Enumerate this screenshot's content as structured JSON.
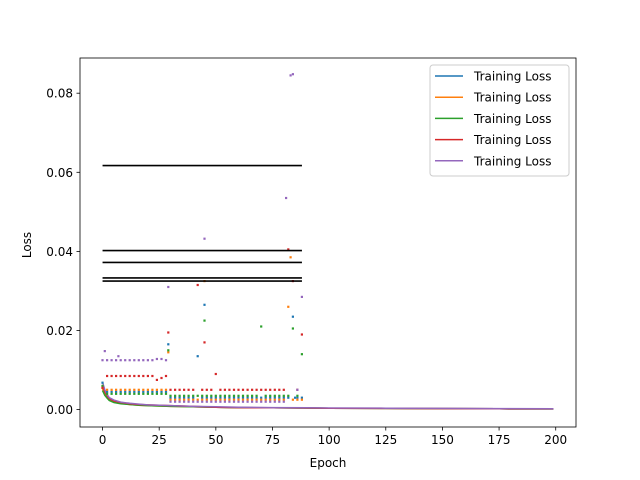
{
  "chart_data": {
    "type": "line",
    "title": "",
    "xlabel": "Epoch",
    "ylabel": "Loss",
    "xlim": [
      -9.95,
      208.95
    ],
    "ylim": [
      -0.0044,
      0.0889
    ],
    "xticks": [
      0,
      25,
      50,
      75,
      100,
      125,
      150,
      175,
      200
    ],
    "yticks": [
      0.0,
      0.02,
      0.04,
      0.06,
      0.08
    ],
    "ytick_labels": [
      "0.00",
      "0.02",
      "0.04",
      "0.06",
      "0.08"
    ],
    "grid": false,
    "legend_position": "top-right",
    "legend": [
      "Training Loss",
      "Training Loss",
      "Training Loss",
      "Training Loss",
      "Training Loss"
    ],
    "series": [
      {
        "color": "#1f77b4",
        "style": "line",
        "x": [
          0,
          1,
          2,
          3,
          5,
          8,
          12,
          16,
          20,
          25,
          30,
          40,
          50,
          60,
          75,
          90,
          100,
          125,
          150,
          175,
          199
        ],
        "y": [
          0.0058,
          0.0042,
          0.0033,
          0.0026,
          0.0021,
          0.0017,
          0.0014,
          0.0012,
          0.0011,
          0.001,
          0.0009,
          0.0007,
          0.0006,
          0.0005,
          0.00045,
          0.0004,
          0.00035,
          0.0003,
          0.00025,
          0.0002,
          0.00018
        ]
      },
      {
        "color": "#ff7f0e",
        "style": "line",
        "x": [
          0,
          1,
          2,
          3,
          5,
          8,
          12,
          16,
          20,
          25,
          30,
          40,
          50,
          60,
          75,
          90,
          100,
          125,
          150,
          175,
          199
        ],
        "y": [
          0.0052,
          0.0038,
          0.003,
          0.0024,
          0.0019,
          0.0016,
          0.0013,
          0.0011,
          0.001,
          0.0009,
          0.0008,
          0.0007,
          0.0006,
          0.0005,
          0.00045,
          0.0004,
          0.00035,
          0.0003,
          0.00025,
          0.0002,
          0.00018
        ]
      },
      {
        "color": "#2ca02c",
        "style": "line",
        "x": [
          0,
          1,
          2,
          3,
          5,
          8,
          12,
          16,
          20,
          25,
          30,
          40,
          50,
          60,
          75,
          90,
          100,
          125,
          150,
          175,
          199
        ],
        "y": [
          0.0048,
          0.0036,
          0.0029,
          0.0023,
          0.0018,
          0.0015,
          0.0013,
          0.0011,
          0.001,
          0.0009,
          0.0008,
          0.0007,
          0.0006,
          0.0005,
          0.00045,
          0.0004,
          0.00035,
          0.0003,
          0.00025,
          0.0002,
          0.00018
        ]
      },
      {
        "color": "#d62728",
        "style": "line",
        "x": [
          0,
          1,
          2,
          3,
          5,
          8,
          12,
          16,
          20,
          25,
          30,
          40,
          50,
          60,
          75,
          90,
          100,
          125,
          150,
          175,
          199
        ],
        "y": [
          0.0062,
          0.0045,
          0.0035,
          0.0028,
          0.0022,
          0.0018,
          0.0015,
          0.0013,
          0.0012,
          0.0011,
          0.001,
          0.0008,
          0.0006,
          0.0005,
          0.00045,
          0.0004,
          0.00035,
          0.0003,
          0.00025,
          0.0002,
          0.00018
        ]
      },
      {
        "color": "#9467bd",
        "style": "line",
        "x": [
          0,
          1,
          2,
          3,
          5,
          8,
          12,
          16,
          20,
          25,
          30,
          40,
          50,
          60,
          75,
          90,
          100,
          125,
          150,
          175,
          199
        ],
        "y": [
          0.007,
          0.005,
          0.0038,
          0.003,
          0.0024,
          0.0019,
          0.0016,
          0.0014,
          0.0012,
          0.0011,
          0.001,
          0.0008,
          0.0007,
          0.0006,
          0.0005,
          0.00045,
          0.0004,
          0.00035,
          0.0003,
          0.00025,
          0.0002
        ]
      },
      {
        "color": "#1f77b4",
        "style": "markers",
        "x": [
          0,
          2,
          4,
          6,
          8,
          10,
          12,
          14,
          16,
          18,
          20,
          22,
          24,
          26,
          28,
          29,
          30,
          32,
          34,
          36,
          38,
          40,
          42,
          44,
          45,
          46,
          48,
          50,
          52,
          54,
          56,
          58,
          60,
          62,
          64,
          66,
          68,
          70,
          72,
          74,
          76,
          78,
          80,
          82,
          84,
          85,
          86,
          88
        ],
        "y": [
          0.0068,
          0.0045,
          0.0045,
          0.0045,
          0.0045,
          0.0045,
          0.0045,
          0.0045,
          0.0045,
          0.0045,
          0.0045,
          0.0045,
          0.0045,
          0.0045,
          0.0045,
          0.0165,
          0.003,
          0.003,
          0.003,
          0.003,
          0.003,
          0.003,
          0.0135,
          0.003,
          0.0265,
          0.003,
          0.003,
          0.003,
          0.003,
          0.003,
          0.003,
          0.003,
          0.003,
          0.003,
          0.003,
          0.003,
          0.003,
          0.003,
          0.003,
          0.003,
          0.003,
          0.003,
          0.003,
          0.003,
          0.0235,
          0.003,
          0.003,
          0.003
        ]
      },
      {
        "color": "#ff7f0e",
        "style": "markers",
        "x": [
          0,
          2,
          4,
          6,
          8,
          10,
          12,
          14,
          16,
          18,
          20,
          22,
          24,
          26,
          28,
          29,
          30,
          32,
          34,
          36,
          38,
          40,
          42,
          44,
          45,
          46,
          48,
          50,
          52,
          54,
          56,
          58,
          60,
          62,
          64,
          66,
          68,
          70,
          72,
          74,
          76,
          78,
          80,
          82,
          83,
          84,
          86,
          88
        ],
        "y": [
          0.0055,
          0.005,
          0.005,
          0.005,
          0.005,
          0.005,
          0.005,
          0.005,
          0.005,
          0.005,
          0.005,
          0.005,
          0.005,
          0.005,
          0.005,
          0.0145,
          0.0025,
          0.0025,
          0.0025,
          0.0025,
          0.0025,
          0.0025,
          0.0025,
          0.0025,
          0.0325,
          0.0025,
          0.0025,
          0.0025,
          0.0025,
          0.0025,
          0.0025,
          0.0025,
          0.0025,
          0.0025,
          0.0025,
          0.0025,
          0.0025,
          0.0025,
          0.0025,
          0.0025,
          0.0025,
          0.0025,
          0.0025,
          0.026,
          0.0385,
          0.0025,
          0.0025,
          0.0025
        ]
      },
      {
        "color": "#2ca02c",
        "style": "markers",
        "x": [
          0,
          2,
          4,
          6,
          8,
          10,
          12,
          14,
          16,
          18,
          20,
          22,
          24,
          26,
          28,
          29,
          30,
          32,
          34,
          36,
          38,
          40,
          42,
          44,
          45,
          46,
          48,
          50,
          52,
          54,
          56,
          58,
          60,
          62,
          64,
          66,
          68,
          70,
          72,
          74,
          76,
          78,
          80,
          82,
          84,
          86,
          88
        ],
        "y": [
          0.006,
          0.004,
          0.004,
          0.004,
          0.004,
          0.004,
          0.004,
          0.004,
          0.004,
          0.004,
          0.004,
          0.004,
          0.004,
          0.004,
          0.004,
          0.015,
          0.0035,
          0.0035,
          0.0035,
          0.0035,
          0.0035,
          0.0035,
          0.0035,
          0.0035,
          0.0225,
          0.0035,
          0.0035,
          0.0035,
          0.0035,
          0.0035,
          0.0035,
          0.0035,
          0.0035,
          0.0035,
          0.0035,
          0.0035,
          0.0035,
          0.021,
          0.0035,
          0.0035,
          0.0035,
          0.0035,
          0.0035,
          0.0035,
          0.0205,
          0.0035,
          0.014
        ]
      },
      {
        "color": "#d62728",
        "style": "markers",
        "x": [
          0,
          2,
          4,
          6,
          8,
          10,
          12,
          14,
          16,
          18,
          20,
          22,
          24,
          26,
          28,
          29,
          30,
          32,
          34,
          36,
          38,
          40,
          42,
          44,
          45,
          46,
          48,
          50,
          52,
          54,
          56,
          58,
          60,
          62,
          64,
          66,
          68,
          70,
          72,
          74,
          76,
          78,
          80,
          82,
          84,
          86,
          88
        ],
        "y": [
          0.0055,
          0.0085,
          0.0085,
          0.0085,
          0.0085,
          0.0085,
          0.0085,
          0.0085,
          0.0085,
          0.0085,
          0.0085,
          0.0085,
          0.0075,
          0.008,
          0.0085,
          0.0195,
          0.005,
          0.005,
          0.005,
          0.005,
          0.005,
          0.005,
          0.0315,
          0.005,
          0.017,
          0.005,
          0.005,
          0.009,
          0.005,
          0.005,
          0.005,
          0.005,
          0.005,
          0.005,
          0.005,
          0.005,
          0.005,
          0.005,
          0.005,
          0.005,
          0.005,
          0.005,
          0.005,
          0.0405,
          0.0325,
          0.005,
          0.019
        ]
      },
      {
        "color": "#9467bd",
        "style": "markers",
        "x": [
          0,
          1,
          2,
          4,
          6,
          7,
          8,
          10,
          12,
          14,
          16,
          18,
          20,
          22,
          24,
          26,
          28,
          29,
          30,
          32,
          34,
          36,
          38,
          40,
          42,
          44,
          45,
          46,
          48,
          50,
          52,
          54,
          56,
          58,
          60,
          62,
          64,
          66,
          68,
          70,
          72,
          74,
          76,
          78,
          80,
          81,
          83,
          84,
          86,
          88
        ],
        "y": [
          0.0125,
          0.0148,
          0.0125,
          0.0125,
          0.0125,
          0.0135,
          0.0125,
          0.0125,
          0.0125,
          0.0125,
          0.0125,
          0.0125,
          0.0125,
          0.0125,
          0.0128,
          0.0128,
          0.0125,
          0.031,
          0.002,
          0.002,
          0.002,
          0.002,
          0.002,
          0.002,
          0.002,
          0.002,
          0.0432,
          0.002,
          0.002,
          0.002,
          0.002,
          0.002,
          0.002,
          0.002,
          0.002,
          0.002,
          0.002,
          0.002,
          0.002,
          0.002,
          0.002,
          0.002,
          0.002,
          0.002,
          0.002,
          0.0535,
          0.0845,
          0.0848,
          0.005,
          0.0285
        ]
      },
      {
        "color": "#000000",
        "style": "hlines",
        "xmin": 0,
        "xmax": 88,
        "y": [
          0.0617,
          0.0402,
          0.0372,
          0.0333,
          0.0325
        ]
      }
    ]
  }
}
